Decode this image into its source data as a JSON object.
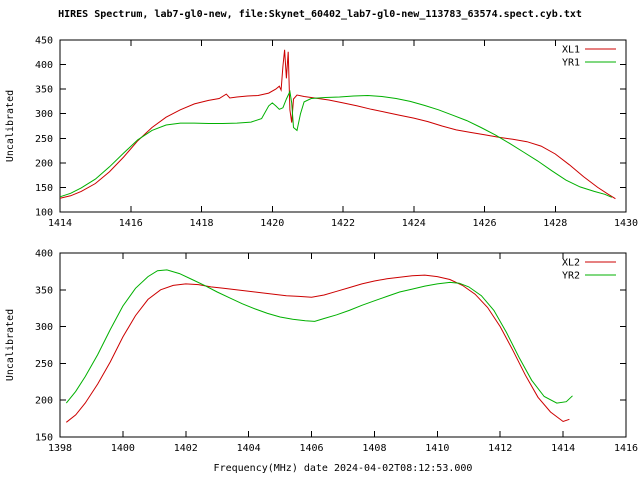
{
  "title": "HIRES Spectrum, lab7-gl0-new, file:Skynet_60402_lab7-gl0-new_113783_63574.spect.cyb.txt",
  "colors": {
    "background": "#ffffff",
    "frame": "#000000",
    "series_red": "#cc0000",
    "series_green": "#00b000"
  },
  "chart_data": [
    {
      "type": "line",
      "panel": "top",
      "ylabel": "Uncalibrated",
      "xlabel": "",
      "xlim": [
        1414,
        1430
      ],
      "ylim": [
        100,
        450
      ],
      "xticks": [
        1414,
        1416,
        1418,
        1420,
        1422,
        1424,
        1426,
        1428,
        1430
      ],
      "yticks": [
        100,
        150,
        200,
        250,
        300,
        350,
        400,
        450
      ],
      "grid": false,
      "legend_position": "top-right",
      "series": [
        {
          "name": "XL1",
          "color": "#cc0000",
          "points": [
            [
              1414.0,
              128
            ],
            [
              1414.3,
              133
            ],
            [
              1414.6,
              142
            ],
            [
              1415.0,
              158
            ],
            [
              1415.4,
              182
            ],
            [
              1415.8,
              212
            ],
            [
              1416.2,
              245
            ],
            [
              1416.6,
              272
            ],
            [
              1417.0,
              293
            ],
            [
              1417.4,
              308
            ],
            [
              1417.8,
              320
            ],
            [
              1418.2,
              327
            ],
            [
              1418.5,
              331
            ],
            [
              1418.7,
              340
            ],
            [
              1418.8,
              332
            ],
            [
              1419.0,
              334
            ],
            [
              1419.3,
              336
            ],
            [
              1419.6,
              337
            ],
            [
              1419.9,
              342
            ],
            [
              1420.1,
              350
            ],
            [
              1420.2,
              356
            ],
            [
              1420.25,
              348
            ],
            [
              1420.3,
              396
            ],
            [
              1420.35,
              430
            ],
            [
              1420.4,
              372
            ],
            [
              1420.45,
              426
            ],
            [
              1420.5,
              308
            ],
            [
              1420.55,
              282
            ],
            [
              1420.6,
              330
            ],
            [
              1420.7,
              338
            ],
            [
              1420.9,
              335
            ],
            [
              1421.2,
              332
            ],
            [
              1421.6,
              328
            ],
            [
              1422.0,
              322
            ],
            [
              1422.4,
              316
            ],
            [
              1422.8,
              309
            ],
            [
              1423.2,
              303
            ],
            [
              1423.6,
              297
            ],
            [
              1424.0,
              291
            ],
            [
              1424.4,
              284
            ],
            [
              1424.8,
              275
            ],
            [
              1425.2,
              267
            ],
            [
              1425.6,
              262
            ],
            [
              1426.0,
              257
            ],
            [
              1426.4,
              252
            ],
            [
              1426.8,
              248
            ],
            [
              1427.2,
              243
            ],
            [
              1427.6,
              234
            ],
            [
              1428.0,
              218
            ],
            [
              1428.4,
              196
            ],
            [
              1428.8,
              172
            ],
            [
              1429.2,
              150
            ],
            [
              1429.5,
              136
            ],
            [
              1429.7,
              127
            ]
          ]
        },
        {
          "name": "YR1",
          "color": "#00b000",
          "points": [
            [
              1414.0,
              131
            ],
            [
              1414.3,
              138
            ],
            [
              1414.6,
              149
            ],
            [
              1415.0,
              167
            ],
            [
              1415.4,
              192
            ],
            [
              1415.8,
              220
            ],
            [
              1416.2,
              247
            ],
            [
              1416.6,
              266
            ],
            [
              1417.0,
              277
            ],
            [
              1417.4,
              281
            ],
            [
              1417.8,
              281
            ],
            [
              1418.2,
              280
            ],
            [
              1418.6,
              280
            ],
            [
              1419.0,
              281
            ],
            [
              1419.4,
              283
            ],
            [
              1419.7,
              290
            ],
            [
              1419.9,
              316
            ],
            [
              1420.0,
              322
            ],
            [
              1420.1,
              316
            ],
            [
              1420.2,
              309
            ],
            [
              1420.3,
              312
            ],
            [
              1420.4,
              330
            ],
            [
              1420.5,
              345
            ],
            [
              1420.55,
              322
            ],
            [
              1420.6,
              272
            ],
            [
              1420.7,
              266
            ],
            [
              1420.8,
              300
            ],
            [
              1420.9,
              324
            ],
            [
              1421.1,
              331
            ],
            [
              1421.5,
              333
            ],
            [
              1421.9,
              334
            ],
            [
              1422.3,
              336
            ],
            [
              1422.7,
              337
            ],
            [
              1423.1,
              335
            ],
            [
              1423.5,
              331
            ],
            [
              1423.9,
              325
            ],
            [
              1424.3,
              317
            ],
            [
              1424.7,
              308
            ],
            [
              1425.1,
              297
            ],
            [
              1425.5,
              286
            ],
            [
              1425.9,
              272
            ],
            [
              1426.3,
              257
            ],
            [
              1426.7,
              240
            ],
            [
              1427.1,
              222
            ],
            [
              1427.5,
              204
            ],
            [
              1427.9,
              184
            ],
            [
              1428.3,
              165
            ],
            [
              1428.7,
              151
            ],
            [
              1429.1,
              142
            ],
            [
              1429.4,
              136
            ],
            [
              1429.6,
              130
            ]
          ]
        }
      ]
    },
    {
      "type": "line",
      "panel": "bottom",
      "ylabel": "Uncalibrated",
      "xlabel": "Frequency(MHz) date 2024-04-02T08:12:53.000",
      "xlim": [
        1398,
        1416
      ],
      "ylim": [
        150,
        400
      ],
      "xticks": [
        1398,
        1400,
        1402,
        1404,
        1406,
        1408,
        1410,
        1412,
        1414,
        1416
      ],
      "yticks": [
        150,
        200,
        250,
        300,
        350,
        400
      ],
      "grid": false,
      "legend_position": "top-right",
      "series": [
        {
          "name": "XL2",
          "color": "#cc0000",
          "points": [
            [
              1398.2,
              170
            ],
            [
              1398.5,
              180
            ],
            [
              1398.8,
              196
            ],
            [
              1399.2,
              222
            ],
            [
              1399.6,
              252
            ],
            [
              1400.0,
              286
            ],
            [
              1400.4,
              315
            ],
            [
              1400.8,
              337
            ],
            [
              1401.2,
              350
            ],
            [
              1401.6,
              356
            ],
            [
              1402.0,
              358
            ],
            [
              1402.4,
              357
            ],
            [
              1402.8,
              354
            ],
            [
              1403.2,
              352
            ],
            [
              1403.6,
              350
            ],
            [
              1404.0,
              348
            ],
            [
              1404.4,
              346
            ],
            [
              1404.8,
              344
            ],
            [
              1405.2,
              342
            ],
            [
              1405.6,
              341
            ],
            [
              1406.0,
              340
            ],
            [
              1406.4,
              343
            ],
            [
              1406.8,
              348
            ],
            [
              1407.2,
              353
            ],
            [
              1407.6,
              358
            ],
            [
              1408.0,
              362
            ],
            [
              1408.4,
              365
            ],
            [
              1408.8,
              367
            ],
            [
              1409.2,
              369
            ],
            [
              1409.6,
              370
            ],
            [
              1410.0,
              368
            ],
            [
              1410.4,
              364
            ],
            [
              1410.8,
              356
            ],
            [
              1411.2,
              344
            ],
            [
              1411.6,
              326
            ],
            [
              1412.0,
              300
            ],
            [
              1412.4,
              268
            ],
            [
              1412.8,
              234
            ],
            [
              1413.2,
              204
            ],
            [
              1413.6,
              184
            ],
            [
              1414.0,
              171
            ],
            [
              1414.2,
              174
            ]
          ]
        },
        {
          "name": "YR2",
          "color": "#00b000",
          "points": [
            [
              1398.2,
              196
            ],
            [
              1398.5,
              212
            ],
            [
              1398.8,
              232
            ],
            [
              1399.2,
              262
            ],
            [
              1399.6,
              296
            ],
            [
              1400.0,
              328
            ],
            [
              1400.4,
              352
            ],
            [
              1400.8,
              368
            ],
            [
              1401.1,
              376
            ],
            [
              1401.4,
              377
            ],
            [
              1401.8,
              372
            ],
            [
              1402.2,
              364
            ],
            [
              1402.6,
              356
            ],
            [
              1403.0,
              347
            ],
            [
              1403.4,
              339
            ],
            [
              1403.8,
              331
            ],
            [
              1404.2,
              324
            ],
            [
              1404.6,
              318
            ],
            [
              1405.0,
              313
            ],
            [
              1405.4,
              310
            ],
            [
              1405.8,
              308
            ],
            [
              1406.1,
              307
            ],
            [
              1406.4,
              311
            ],
            [
              1406.8,
              316
            ],
            [
              1407.2,
              322
            ],
            [
              1407.6,
              329
            ],
            [
              1408.0,
              335
            ],
            [
              1408.4,
              341
            ],
            [
              1408.8,
              347
            ],
            [
              1409.2,
              351
            ],
            [
              1409.6,
              355
            ],
            [
              1410.0,
              358
            ],
            [
              1410.4,
              360
            ],
            [
              1410.7,
              359
            ],
            [
              1411.0,
              354
            ],
            [
              1411.4,
              342
            ],
            [
              1411.8,
              322
            ],
            [
              1412.2,
              292
            ],
            [
              1412.6,
              258
            ],
            [
              1413.0,
              227
            ],
            [
              1413.4,
              205
            ],
            [
              1413.8,
              196
            ],
            [
              1414.1,
              198
            ],
            [
              1414.3,
              206
            ]
          ]
        }
      ]
    }
  ]
}
